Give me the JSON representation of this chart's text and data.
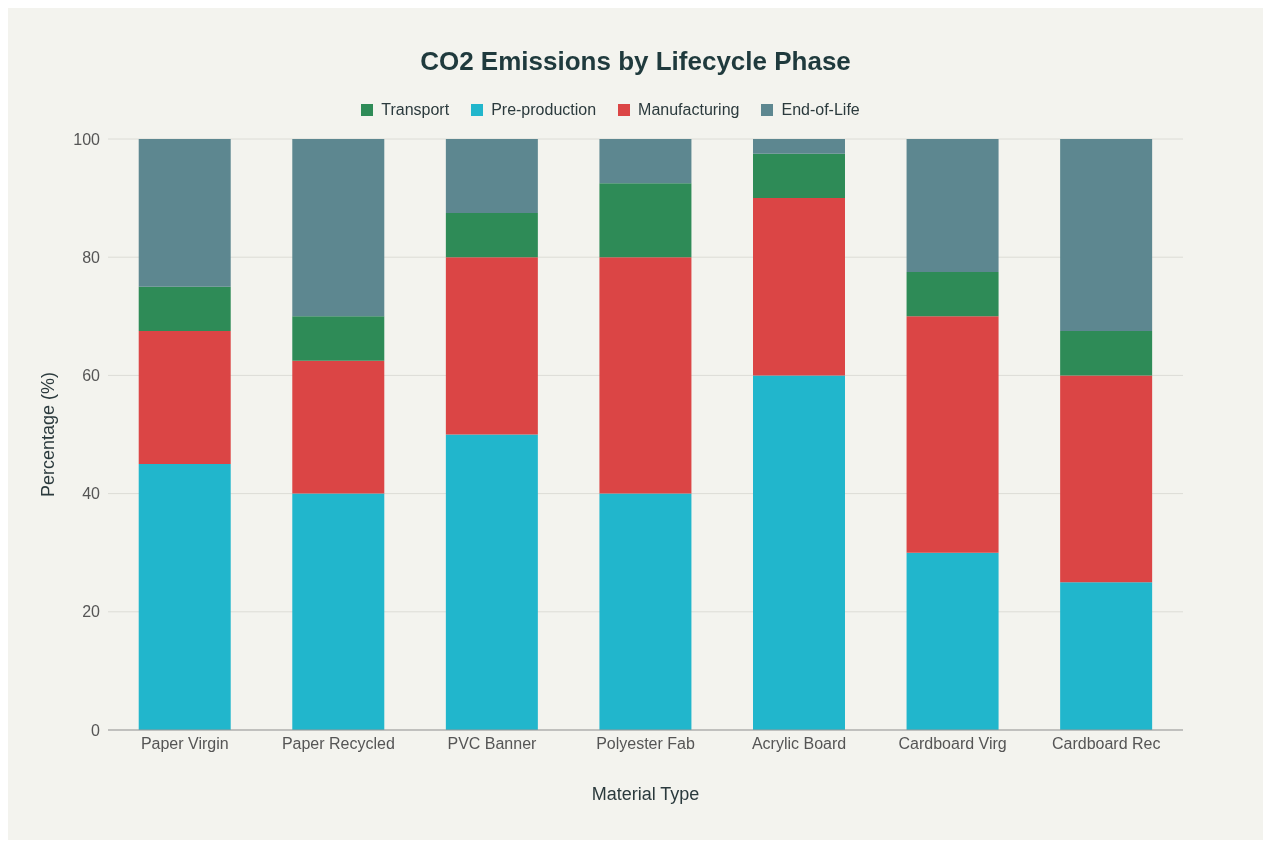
{
  "chart_data": {
    "type": "bar",
    "title": "CO2 Emissions by Lifecycle Phase",
    "xlabel": "Material Type",
    "ylabel": "Percentage (%)",
    "categories": [
      "Paper Virgin",
      "Paper Recycled",
      "PVC Banner",
      "Polyester Fab",
      "Acrylic Board",
      "Cardboard Virg",
      "Cardboard Rec"
    ],
    "stacked": true,
    "series": [
      {
        "name": "Pre-production",
        "color": "#21b6cc",
        "values": [
          45,
          40,
          50,
          40,
          60,
          30,
          25
        ]
      },
      {
        "name": "Manufacturing",
        "color": "#db4545",
        "values": [
          22.5,
          22.5,
          30,
          40,
          30,
          40,
          35
        ]
      },
      {
        "name": "Transport",
        "color": "#2e8b57",
        "values": [
          7.5,
          7.5,
          7.5,
          12.5,
          7.5,
          7.5,
          7.5
        ]
      },
      {
        "name": "End-of-Life",
        "color": "#5d8790",
        "values": [
          25,
          30,
          12.5,
          7.5,
          2.5,
          22.5,
          32.5
        ]
      }
    ],
    "ylim": [
      0,
      100
    ],
    "yticks": [
      0,
      20,
      40,
      60,
      80,
      100
    ],
    "grid": "y",
    "legend": "top"
  }
}
